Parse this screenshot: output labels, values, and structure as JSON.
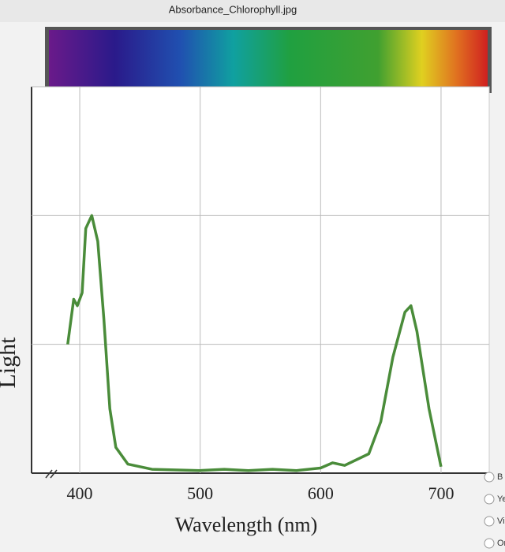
{
  "window_title": "Absorbance_Chlorophyll.jpg",
  "options": [
    "B",
    "Ye",
    "Vio",
    "Ora"
  ],
  "chart_data": {
    "type": "line",
    "ylabel": "Light",
    "xlabel": "Wavelength (nm)",
    "x": [
      390,
      395,
      398,
      402,
      405,
      410,
      415,
      420,
      425,
      430,
      440,
      460,
      500,
      520,
      540,
      560,
      580,
      600,
      610,
      620,
      640,
      650,
      660,
      670,
      675,
      680,
      690,
      700
    ],
    "series": [
      {
        "color": "#4a8c3a",
        "values": [
          1.0,
          1.35,
          1.3,
          1.4,
          1.9,
          2.0,
          1.8,
          1.2,
          0.5,
          0.2,
          0.07,
          0.03,
          0.02,
          0.03,
          0.02,
          0.03,
          0.02,
          0.04,
          0.08,
          0.06,
          0.15,
          0.4,
          0.9,
          1.25,
          1.3,
          1.1,
          0.5,
          0.05
        ]
      }
    ],
    "xlim": [
      360,
      740
    ],
    "xticks": [
      400,
      500,
      600,
      700
    ],
    "ylim": [
      0,
      3
    ],
    "yticks": [
      1,
      2,
      3
    ],
    "grid": true
  }
}
